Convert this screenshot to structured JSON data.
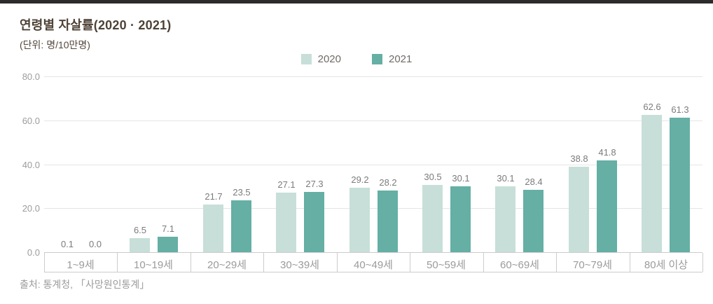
{
  "topbar_color": "#2d2b2c",
  "header": {
    "title": "연령별 자살률(2020 · 2021)",
    "unit_label": "(단위: 명/10만명)"
  },
  "legend": [
    {
      "label": "2020",
      "color": "#c7dfd8"
    },
    {
      "label": "2021",
      "color": "#65afa5"
    }
  ],
  "source": "출처: 통계청, 「사망원인통계」",
  "colors": {
    "series_2020": "#c7dfd8",
    "series_2021": "#65afa5",
    "gridline": "#e5e5e5",
    "axis_band_line": "#cccccc",
    "axis_text": "#9c9c9c",
    "value_text": "#7b7b7b",
    "title_text": "#4e4237"
  },
  "chart_data": {
    "type": "bar",
    "title": "연령별 자살률(2020 · 2021)",
    "unit": "명/10만명",
    "categories": [
      "1~9세",
      "10~19세",
      "20~29세",
      "30~39세",
      "40~49세",
      "50~59세",
      "60~69세",
      "70~79세",
      "80세 이상"
    ],
    "series": [
      {
        "name": "2020",
        "color": "#c7dfd8",
        "values": [
          0.1,
          6.5,
          21.7,
          27.1,
          29.2,
          30.5,
          30.1,
          38.8,
          62.6
        ]
      },
      {
        "name": "2021",
        "color": "#65afa5",
        "values": [
          0.0,
          7.1,
          23.5,
          27.3,
          28.2,
          30.1,
          28.4,
          41.8,
          61.3
        ]
      }
    ],
    "ylim": [
      0,
      80
    ],
    "yticks": [
      0,
      20,
      40,
      60,
      80
    ],
    "ytick_labels": [
      "0.0",
      "20.0",
      "40.0",
      "60.0",
      "80.0"
    ],
    "grid": true,
    "legend_position": "top",
    "value_labels": true,
    "source": "출처: 통계청, 「사망원인통계」"
  }
}
